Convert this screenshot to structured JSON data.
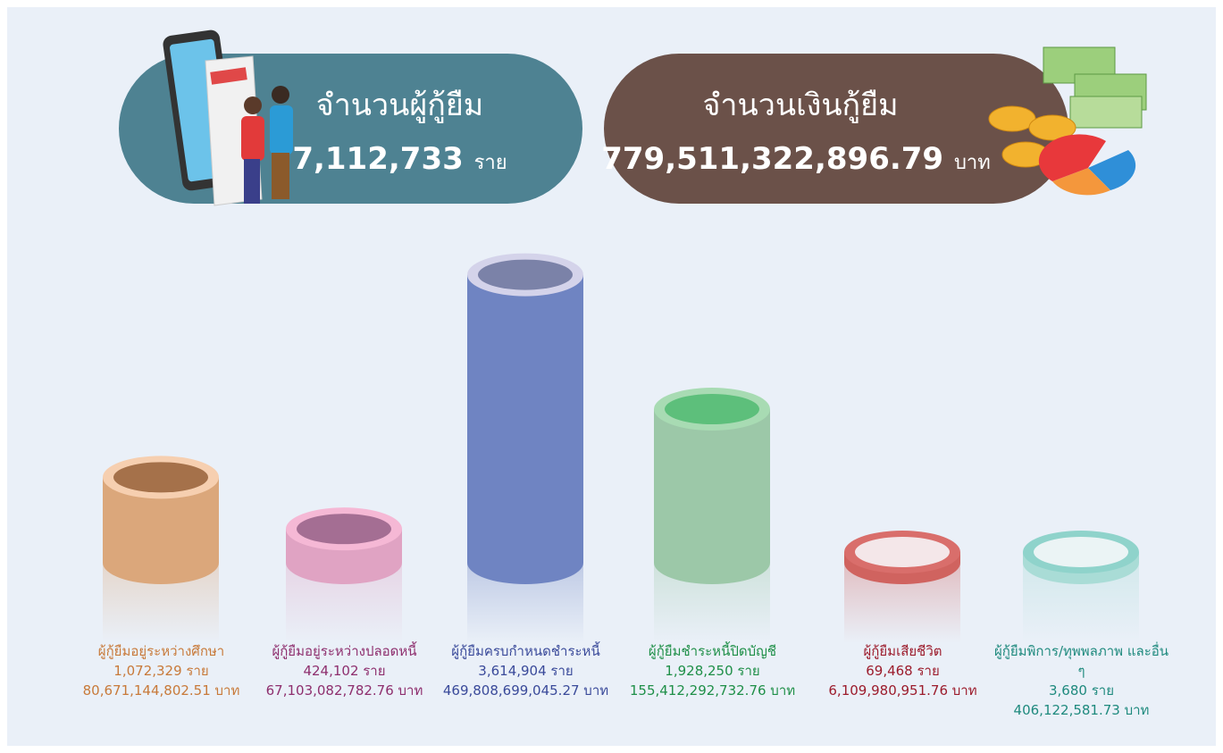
{
  "header": {
    "borrowers": {
      "label": "จำนวนผู้กู้ยืม",
      "value": "7,112,733",
      "unit": "ราย"
    },
    "amount": {
      "label": "จำนวนเงินกู้ยืม",
      "value": "779,511,322,896.79",
      "unit": "บาท"
    }
  },
  "chart_data": {
    "type": "bar",
    "categories": [
      "ผู้กู้ยืมอยู่ระหว่างศึกษา",
      "ผู้กู้ยืมอยู่ระหว่างปลอดหนี้",
      "ผู้กู้ยืมครบกำหนดชำระหนี้",
      "ผู้กู้ยืมชำระหนี้ปิดบัญชี",
      "ผู้กู้ยืมเสียชีวิต",
      "ผู้กู้ยืมพิการ/ทุพพลภาพ และอื่น ๆ"
    ],
    "values": [
      1072329,
      424102,
      3614904,
      1928250,
      69468,
      3680
    ],
    "value_labels": [
      "1,072,329 ราย",
      "424,102 ราย",
      "3,614,904 ราย",
      "1,928,250 ราย",
      "69,468 ราย",
      "3,680 ราย"
    ],
    "amounts": [
      80671144802.51,
      67103082782.76,
      469808699045.27,
      155412292732.76,
      6109980951.76,
      406122581.73
    ],
    "amount_labels": [
      "80,671,144,802.51 บาท",
      "67,103,082,782.76 บาท",
      "469,808,699,045.27 บาท",
      "155,412,292,732.76 บาท",
      "6,109,980,951.76 บาท",
      "406,122,581.73 บาท"
    ],
    "colors": [
      "#dba77b",
      "#e0a3c3",
      "#6f84c2",
      "#9cc8a8",
      "#d0635f",
      "#a9dcd6"
    ],
    "ylim": [
      0,
      3700000
    ]
  }
}
